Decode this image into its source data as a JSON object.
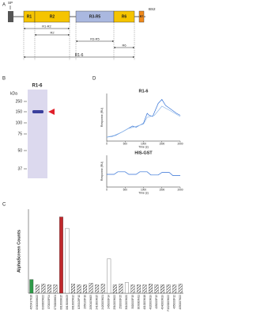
{
  "panel_a": {
    "label": "A",
    "sp": "SP",
    "bs2": "BS2",
    "domains": [
      "R1",
      "R2",
      "R3-R5",
      "R6",
      "R7"
    ],
    "constructs": [
      "R1-R2",
      "R2",
      "R3-R5",
      "R6",
      "R1-6"
    ]
  },
  "panel_b": {
    "label": "B",
    "title": "R1-6",
    "unit": "kDa",
    "markers": [
      250,
      150,
      100,
      75,
      50,
      37
    ]
  },
  "panel_d": {
    "label": "D",
    "plots": [
      {
        "title": "R1-6",
        "ylabel": "Response (RU)",
        "xlabel": "Time (s)",
        "xlim": [
          0,
          2000
        ],
        "xticks": [
          0,
          500,
          1000,
          1500,
          2000
        ],
        "ylim": [
          -10,
          110
        ],
        "series": [
          {
            "color": "#2f6fd6",
            "x": [
              0,
              150,
              250,
              400,
              550,
              700,
              800,
              900,
              1000,
              1100,
              1150,
              1250,
              1400,
              1500,
              1600,
              1750,
              1900,
              2000
            ],
            "y": [
              0,
              2,
              5,
              12,
              20,
              28,
              25,
              30,
              35,
              60,
              55,
              52,
              85,
              95,
              80,
              70,
              60,
              55
            ]
          },
          {
            "color": "#8fb7e8",
            "x": [
              0,
              200,
              400,
              600,
              800,
              1000,
              1100,
              1300,
              1500,
              1700,
              2000
            ],
            "y": [
              0,
              4,
              12,
              22,
              27,
              33,
              50,
              55,
              78,
              68,
              52
            ]
          }
        ]
      },
      {
        "title": "HIS-GST",
        "ylabel": "Response (RU)",
        "xlabel": "Time (s)",
        "xlim": [
          0,
          2000
        ],
        "xticks": [
          0,
          500,
          1000,
          1500,
          2000
        ],
        "ylim": [
          -40,
          60
        ],
        "series": [
          {
            "color": "#2f6fd6",
            "x": [
              0,
              200,
              300,
              500,
              600,
              800,
              900,
              1100,
              1200,
              1400,
              1500,
              1700,
              1800,
              2000
            ],
            "y": [
              0,
              0,
              8,
              8,
              0,
              0,
              8,
              8,
              -2,
              -2,
              6,
              6,
              -4,
              -4
            ]
          }
        ]
      }
    ]
  },
  "panel_c": {
    "label": "C",
    "type": "bar",
    "ylabel": "AlphaScreen Counts",
    "ylim": [
      0,
      110
    ],
    "categories": [
      "4050417M18",
      "0900006M22",
      "0900005M22",
      "0700005F04",
      "0700006M01",
      "0613006M15",
      "0613006M23",
      "0613005M12",
      "1050103P10",
      "2050103F10",
      "2050103M05",
      "2410003M15",
      "2420003M21",
      "2450003F14",
      "2510003M22",
      "2520003F25",
      "3010003M20",
      "3020003F15",
      "3030003M11",
      "4010003M18",
      "4020003M19",
      "4030003F15",
      "4040003M19",
      "F4020003M22",
      "4050003F12",
      "4050007M22"
    ],
    "values": [
      18,
      11,
      12,
      11,
      11,
      100,
      85,
      12,
      11,
      11,
      13,
      11,
      12,
      45,
      11,
      12,
      14,
      11,
      11,
      11,
      12,
      11,
      11,
      11,
      11,
      12
    ],
    "fills": [
      "green",
      "hatch",
      "hatch",
      "hatch",
      "hatch",
      "red",
      "white",
      "hatch",
      "hatch",
      "hatch",
      "hatch",
      "hatch",
      "hatch",
      "white",
      "hatch",
      "hatch",
      "white",
      "hatch",
      "hatch",
      "hatch",
      "hatch",
      "hatch",
      "hatch",
      "hatch",
      "hatch",
      "hatch"
    ]
  }
}
